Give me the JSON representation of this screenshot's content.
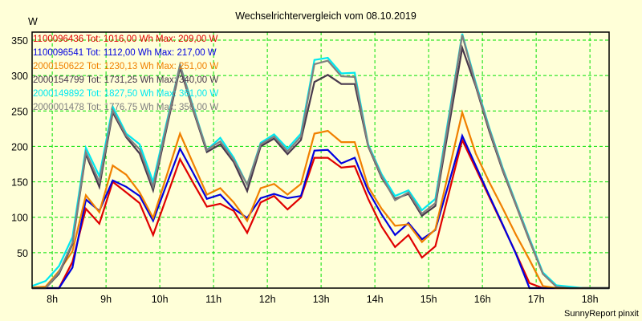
{
  "chart_data": {
    "type": "line",
    "title": "Wechselrichtervergleich vom 08.10.2019",
    "ylabel": "W",
    "xlabel": "",
    "footer": "SunnyReport pinxit",
    "ylim": [
      0,
      350
    ],
    "xlim": [
      7.625,
      18.36
    ],
    "yticks": [
      50,
      100,
      150,
      200,
      250,
      300,
      350
    ],
    "xticks": [
      8,
      9,
      10,
      11,
      12,
      13,
      14,
      15,
      16,
      17,
      18
    ],
    "xtick_labels": [
      "8h",
      "9h",
      "10h",
      "11h",
      "12h",
      "13h",
      "14h",
      "15h",
      "16h",
      "17h",
      "18h"
    ],
    "grid": true,
    "grid_color": "#00e000",
    "background": "#ffffd8",
    "legend_position": "top-left",
    "x": [
      7.625,
      7.875,
      8.125,
      8.375,
      8.625,
      8.875,
      9.125,
      9.375,
      9.625,
      9.875,
      10.125,
      10.375,
      10.625,
      10.875,
      11.125,
      11.375,
      11.625,
      11.875,
      12.125,
      12.375,
      12.625,
      12.875,
      13.125,
      13.375,
      13.625,
      13.875,
      14.125,
      14.375,
      14.625,
      14.875,
      15.125,
      15.375,
      15.625,
      15.875,
      16.125,
      16.375,
      16.625,
      16.875,
      17.125,
      17.375,
      17.625,
      17.875,
      18.125,
      18.36
    ],
    "series": [
      {
        "name": "1100096436",
        "legend": "1100096436 Tot: 1016,00 Wh Max: 209,00 W",
        "color": "#e00000",
        "values": [
          0,
          0,
          0,
          37,
          112,
          91,
          150,
          135,
          120,
          75,
          128,
          182,
          148,
          115,
          119,
          109,
          78,
          121,
          130,
          111,
          128,
          184,
          184,
          170,
          172,
          126,
          87,
          58,
          75,
          43,
          59,
          134,
          209,
          169,
          129,
          89,
          49,
          7,
          0,
          0,
          0,
          0,
          0,
          0
        ]
      },
      {
        "name": "1100096541",
        "legend": "1100096541 Tot: 1112,00 Wh Max: 217,00 W",
        "color": "#0000e0",
        "values": [
          0,
          0,
          0,
          29,
          125,
          109,
          152,
          143,
          130,
          95,
          146,
          197,
          162,
          126,
          132,
          112,
          99,
          127,
          133,
          127,
          130,
          194,
          195,
          176,
          184,
          137,
          104,
          75,
          92,
          69,
          82,
          148,
          215,
          173,
          131,
          90,
          48,
          0,
          0,
          0,
          0,
          0,
          0,
          0
        ]
      },
      {
        "name": "2000150622",
        "legend": "2000150622 Tot: 1230,13 Wh Max: 251,00 W",
        "color": "#f08000",
        "values": [
          1,
          2,
          24,
          52,
          131,
          107,
          173,
          160,
          135,
          99,
          158,
          218,
          175,
          132,
          141,
          121,
          95,
          141,
          147,
          132,
          147,
          218,
          222,
          206,
          206,
          143,
          112,
          88,
          90,
          65,
          83,
          165,
          248,
          190,
          150,
          113,
          75,
          40,
          3,
          0,
          0,
          0,
          0,
          0
        ]
      },
      {
        "name": "2000154799",
        "legend": "2000154799 Tot: 1731,25 Wh Max: 340,00 W",
        "color": "#48384c",
        "values": [
          0,
          0,
          20,
          62,
          189,
          143,
          248,
          213,
          190,
          138,
          225,
          311,
          250,
          192,
          203,
          178,
          137,
          200,
          211,
          189,
          209,
          291,
          301,
          288,
          288,
          200,
          156,
          126,
          133,
          102,
          116,
          228,
          339,
          285,
          222,
          166,
          117,
          67,
          20,
          2,
          0,
          0,
          0,
          0
        ]
      },
      {
        "name": "2000149892",
        "legend": "2000149892 Tot: 1827,50 Wh Max: 361,00 W",
        "color": "#00e8f0",
        "values": [
          3,
          10,
          31,
          72,
          198,
          158,
          256,
          218,
          203,
          150,
          233,
          315,
          255,
          195,
          212,
          184,
          146,
          205,
          217,
          197,
          218,
          322,
          325,
          303,
          304,
          203,
          161,
          130,
          138,
          110,
          126,
          243,
          359,
          290,
          227,
          170,
          120,
          70,
          22,
          4,
          2,
          0,
          0,
          0
        ]
      },
      {
        "name": "2000001478",
        "legend": "2000001478 Tot: 1776,75 Wh Max: 356,00 W",
        "color": "#808080",
        "values": [
          0,
          0,
          22,
          64,
          192,
          150,
          251,
          215,
          196,
          143,
          229,
          315,
          252,
          195,
          207,
          181,
          146,
          203,
          214,
          193,
          214,
          316,
          321,
          299,
          298,
          201,
          158,
          124,
          135,
          105,
          120,
          238,
          357,
          287,
          225,
          168,
          118,
          68,
          20,
          2,
          0,
          0,
          0,
          0
        ]
      }
    ]
  }
}
